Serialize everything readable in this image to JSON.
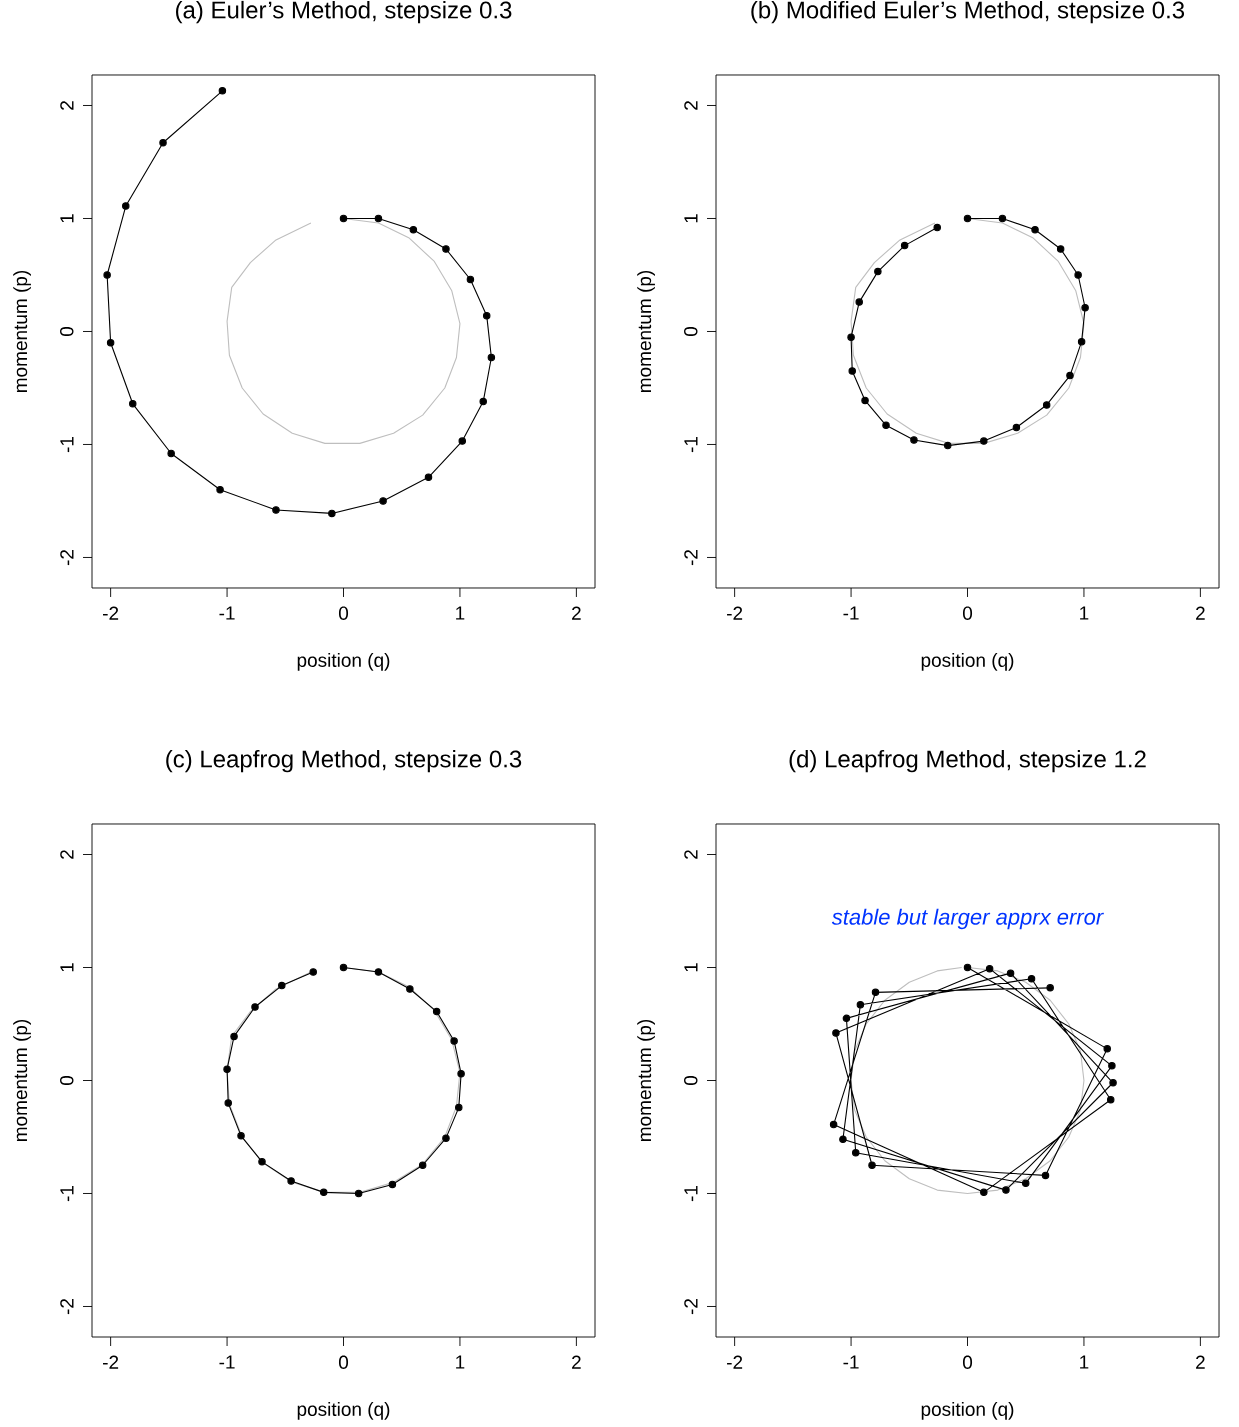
{
  "chart_data": [
    {
      "type": "line",
      "title": "(a) Euler’s Method, stepsize 0.3",
      "xlabel": "position (q)",
      "ylabel": "momentum (p)",
      "xlim": [
        -2.16,
        2.16
      ],
      "ylim": [
        -2.27,
        2.27
      ],
      "xticks": [
        -2,
        -1,
        0,
        1,
        2
      ],
      "yticks": [
        -2,
        -1,
        0,
        1,
        2
      ],
      "series": [
        {
          "color": "#bebebe",
          "marker": "none",
          "x": [
            0,
            0.3,
            0.56,
            0.78,
            0.93,
            1.0,
            0.97,
            0.87,
            0.68,
            0.43,
            0.14,
            -0.16,
            -0.44,
            -0.69,
            -0.87,
            -0.98,
            -1.0,
            -0.96,
            -0.8,
            -0.58,
            -0.28
          ],
          "values": [
            1,
            0.96,
            0.83,
            0.62,
            0.36,
            0.07,
            -0.23,
            -0.5,
            -0.74,
            -0.9,
            -0.99,
            -0.99,
            -0.9,
            -0.73,
            -0.5,
            -0.21,
            0.09,
            0.39,
            0.61,
            0.81,
            0.96
          ]
        },
        {
          "color": "#000000",
          "marker": "circle",
          "x": [
            0,
            0.3,
            0.6,
            0.88,
            1.09,
            1.23,
            1.27,
            1.2,
            1.02,
            0.73,
            0.34,
            -0.1,
            -0.58,
            -1.06,
            -1.48,
            -1.81,
            -2.0,
            -2.03,
            -1.87,
            -1.55,
            -1.04
          ],
          "values": [
            1.0,
            1.0,
            0.9,
            0.73,
            0.46,
            0.14,
            -0.23,
            -0.62,
            -0.97,
            -1.29,
            -1.5,
            -1.61,
            -1.58,
            -1.4,
            -1.08,
            -0.64,
            -0.1,
            0.5,
            1.11,
            1.67,
            2.13
          ]
        }
      ]
    },
    {
      "type": "line",
      "title": "(b) Modified Euler’s Method, stepsize 0.3",
      "xlabel": "position (q)",
      "ylabel": "momentum (p)",
      "xlim": [
        -2.16,
        2.16
      ],
      "ylim": [
        -2.27,
        2.27
      ],
      "xticks": [
        -2,
        -1,
        0,
        1,
        2
      ],
      "yticks": [
        -2,
        -1,
        0,
        1,
        2
      ],
      "series": [
        {
          "color": "#bebebe",
          "marker": "none",
          "x": [
            0,
            0.3,
            0.56,
            0.78,
            0.93,
            1.0,
            0.97,
            0.87,
            0.68,
            0.43,
            0.14,
            -0.16,
            -0.44,
            -0.69,
            -0.87,
            -0.98,
            -1.0,
            -0.96,
            -0.8,
            -0.58,
            -0.28
          ],
          "values": [
            1,
            0.96,
            0.83,
            0.62,
            0.36,
            0.07,
            -0.23,
            -0.5,
            -0.74,
            -0.9,
            -0.99,
            -0.99,
            -0.9,
            -0.73,
            -0.5,
            -0.21,
            0.09,
            0.39,
            0.61,
            0.81,
            0.96
          ]
        },
        {
          "color": "#000000",
          "marker": "circle",
          "x": [
            0,
            0.3,
            0.58,
            0.8,
            0.95,
            1.01,
            0.98,
            0.88,
            0.68,
            0.42,
            0.14,
            -0.17,
            -0.46,
            -0.7,
            -0.88,
            -0.99,
            -1.0,
            -0.93,
            -0.77,
            -0.54,
            -0.26
          ],
          "values": [
            1.0,
            1.0,
            0.9,
            0.73,
            0.5,
            0.21,
            -0.09,
            -0.39,
            -0.65,
            -0.85,
            -0.97,
            -1.01,
            -0.96,
            -0.83,
            -0.61,
            -0.35,
            -0.05,
            0.26,
            0.53,
            0.76,
            0.92
          ]
        }
      ]
    },
    {
      "type": "line",
      "title": "(c) Leapfrog Method, stepsize 0.3",
      "xlabel": "position (q)",
      "ylabel": "momentum (p)",
      "xlim": [
        -2.16,
        2.16
      ],
      "ylim": [
        -2.27,
        2.27
      ],
      "xticks": [
        -2,
        -1,
        0,
        1,
        2
      ],
      "yticks": [
        -2,
        -1,
        0,
        1,
        2
      ],
      "series": [
        {
          "color": "#bebebe",
          "marker": "none",
          "x": [
            0,
            0.3,
            0.56,
            0.78,
            0.93,
            1.0,
            0.97,
            0.87,
            0.68,
            0.43,
            0.14,
            -0.16,
            -0.44,
            -0.69,
            -0.87,
            -0.98,
            -1.0,
            -0.96,
            -0.8,
            -0.58,
            -0.28
          ],
          "values": [
            1,
            0.96,
            0.83,
            0.62,
            0.36,
            0.07,
            -0.23,
            -0.5,
            -0.74,
            -0.9,
            -0.99,
            -0.99,
            -0.9,
            -0.73,
            -0.5,
            -0.21,
            0.09,
            0.39,
            0.61,
            0.81,
            0.96
          ]
        },
        {
          "color": "#000000",
          "marker": "circle",
          "x": [
            0,
            0.3,
            0.57,
            0.8,
            0.95,
            1.01,
            0.99,
            0.88,
            0.68,
            0.42,
            0.13,
            -0.17,
            -0.45,
            -0.7,
            -0.88,
            -0.99,
            -1.0,
            -0.94,
            -0.76,
            -0.53,
            -0.26
          ],
          "values": [
            1.0,
            0.96,
            0.81,
            0.61,
            0.35,
            0.06,
            -0.24,
            -0.51,
            -0.75,
            -0.92,
            -1.0,
            -0.99,
            -0.89,
            -0.72,
            -0.49,
            -0.2,
            0.1,
            0.39,
            0.65,
            0.84,
            0.96
          ]
        }
      ]
    },
    {
      "type": "line",
      "title": "(d) Leapfrog Method, stepsize 1.2",
      "xlabel": "position (q)",
      "ylabel": "momentum (p)",
      "xlim": [
        -2.16,
        2.16
      ],
      "ylim": [
        -2.27,
        2.27
      ],
      "xticks": [
        -2,
        -1,
        0,
        1,
        2
      ],
      "yticks": [
        -2,
        -1,
        0,
        1,
        2
      ],
      "annotations": [
        "stable but larger apprx error"
      ],
      "series": [
        {
          "color": "#bebebe",
          "marker": "none",
          "x": [
            0,
            0.26,
            0.5,
            0.71,
            0.87,
            0.97,
            1,
            0.97,
            0.87,
            0.71,
            0.5,
            0.26,
            0,
            -0.26,
            -0.5,
            -0.71,
            -0.87,
            -0.97,
            -1,
            -0.97,
            -0.87,
            -0.71,
            -0.5,
            -0.26,
            -0.05
          ],
          "values": [
            1,
            0.97,
            0.87,
            0.71,
            0.5,
            0.26,
            0,
            -0.26,
            -0.5,
            -0.71,
            -0.87,
            -0.97,
            -1,
            -0.97,
            -0.87,
            -0.71,
            -0.5,
            -0.26,
            0,
            0.26,
            0.5,
            0.71,
            0.87,
            0.97,
            1.0
          ]
        },
        {
          "color": "#000000",
          "marker": "circle",
          "x": [
            0,
            1.2,
            0.67,
            -0.82,
            -1.13,
            0.19,
            1.24,
            0.5,
            -0.96,
            -1.04,
            0.37,
            1.25,
            0.33,
            -1.07,
            -0.92,
            0.55,
            1.23,
            0.14,
            -1.15,
            -0.79,
            0.71
          ],
          "values": [
            1,
            0.28,
            -0.84,
            -0.75,
            0.42,
            0.99,
            0.13,
            -0.91,
            -0.64,
            0.55,
            0.95,
            -0.02,
            -0.97,
            -0.52,
            0.67,
            0.9,
            -0.17,
            -0.99,
            -0.39,
            0.78,
            0.82
          ]
        }
      ]
    }
  ]
}
